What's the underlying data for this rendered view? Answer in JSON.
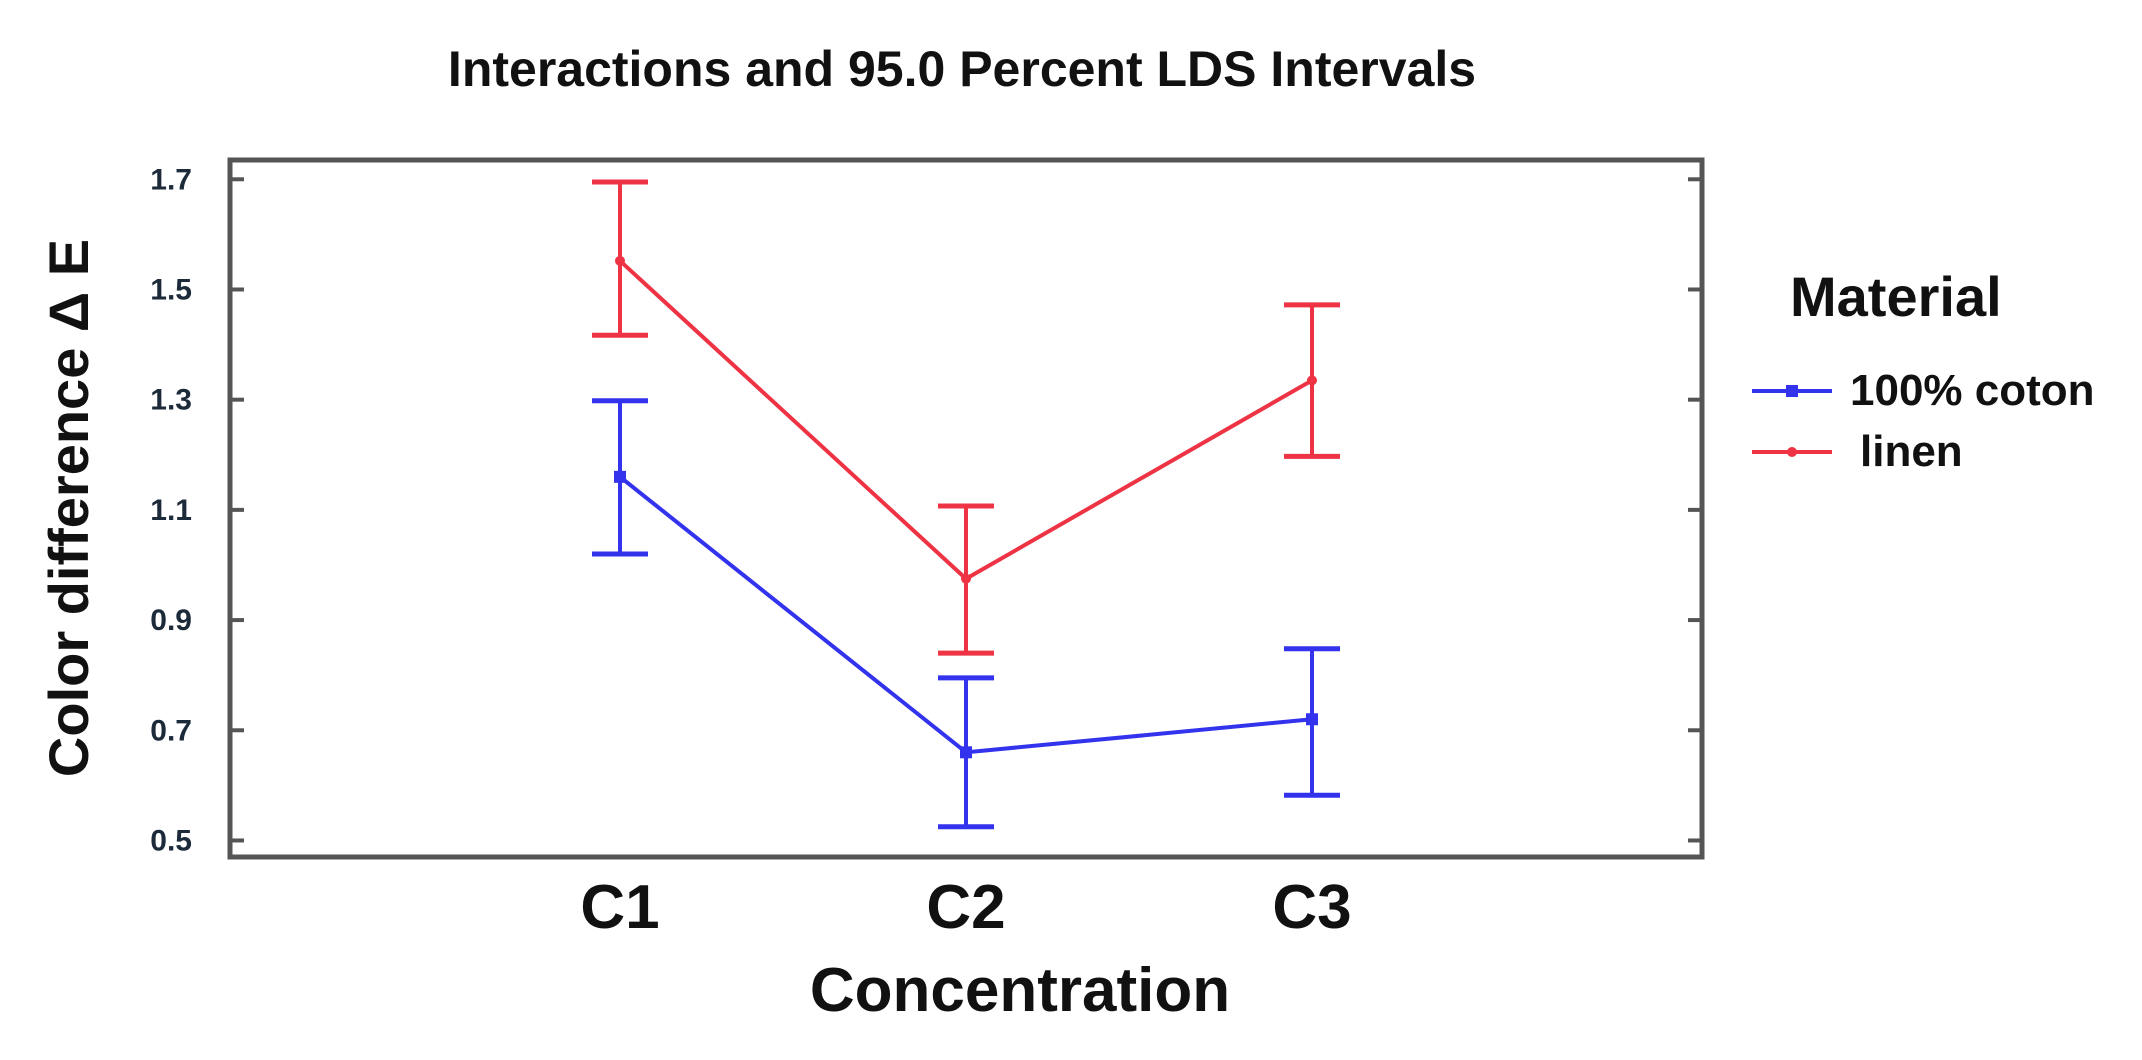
{
  "chart_data": {
    "type": "line",
    "title": "Interactions and 95.0 Percent LDS Intervals",
    "xlabel": "Concentration",
    "ylabel": "Color difference  Δ E",
    "categories": [
      "C1",
      "C2",
      "C3"
    ],
    "ylim": [
      0.47,
      1.735
    ],
    "yticks": [
      0.5,
      0.7,
      0.9,
      1.1,
      1.3,
      1.5,
      1.7
    ],
    "ytick_labels": [
      "0.5",
      "0.7",
      "0.9",
      "1.1",
      "1.3",
      "1.5",
      "1.7"
    ],
    "legend_title": "Material",
    "legend_position": "right",
    "series": [
      {
        "name": "100% coton",
        "color": "#3333ee",
        "marker": "square",
        "values": [
          1.16,
          0.66,
          0.72
        ],
        "lower": [
          1.02,
          0.525,
          0.582
        ],
        "upper": [
          1.298,
          0.795,
          0.848
        ]
      },
      {
        "name": "linen",
        "color": "#ee3344",
        "marker": "star",
        "values": [
          1.552,
          0.975,
          1.335
        ],
        "lower": [
          1.417,
          0.84,
          1.197
        ],
        "upper": [
          1.695,
          1.107,
          1.472
        ]
      }
    ]
  }
}
